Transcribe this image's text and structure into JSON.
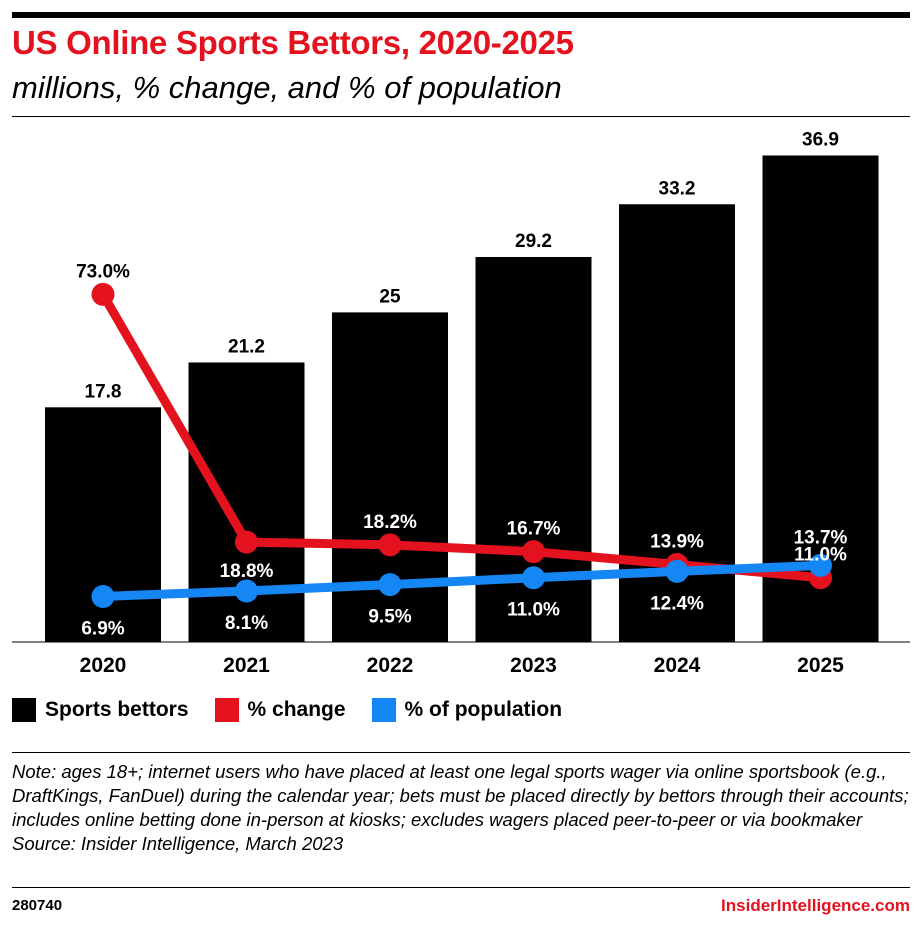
{
  "chart_data": {
    "type": "bar",
    "title": "US Online Sports Bettors, 2020-2025",
    "subtitle": "millions, % change, and % of population",
    "categories": [
      "2020",
      "2021",
      "2022",
      "2023",
      "2024",
      "2025"
    ],
    "ylim": [
      0,
      40
    ],
    "grid": false,
    "legend_position": "bottom-left",
    "series": [
      {
        "name": "Sports bettors",
        "type": "bar",
        "color": "#000000",
        "values": [
          17.8,
          21.2,
          25,
          29.2,
          33.2,
          36.9
        ],
        "labels": [
          "17.8",
          "21.2",
          "25",
          "29.2",
          "33.2",
          "36.9"
        ]
      },
      {
        "name": "% change",
        "type": "line",
        "color": "#e4121f",
        "values": [
          73.0,
          18.8,
          18.2,
          16.7,
          13.9,
          11.0
        ],
        "labels": [
          "73.0%",
          "18.8%",
          "18.2%",
          "16.7%",
          "13.9%",
          "11.0%"
        ]
      },
      {
        "name": "% of population",
        "type": "line",
        "color": "#1487f5",
        "values": [
          6.9,
          8.1,
          9.5,
          11.0,
          12.4,
          13.7
        ],
        "labels": [
          "6.9%",
          "8.1%",
          "9.5%",
          "11.0%",
          "12.4%",
          "13.7%"
        ]
      }
    ]
  },
  "note": "Note: ages 18+; internet users who have placed at least one legal sports wager via online sportsbook (e.g., DraftKings, FanDuel) during the calendar year; bets must be placed directly by bettors through their accounts; includes online betting done in-person at kiosks; excludes wagers placed peer-to-peer or via bookmaker",
  "source": "Source: Insider Intelligence, March 2023",
  "chart_id": "280740",
  "brand": "InsiderIntelligence.com"
}
